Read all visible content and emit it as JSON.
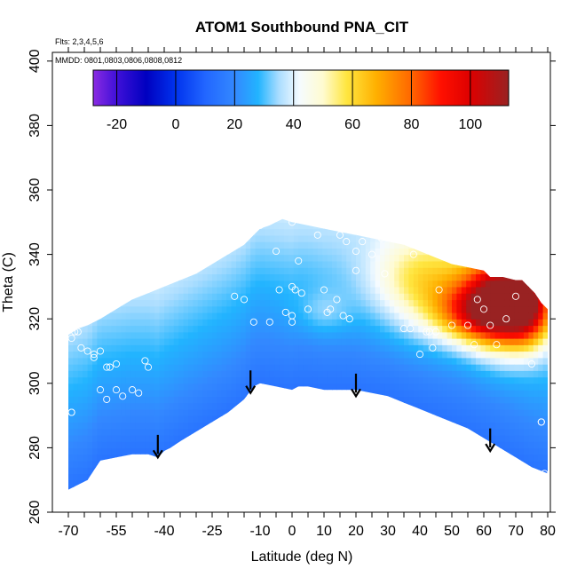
{
  "chart_data": {
    "type": "heatmap",
    "title": "ATOM1 Southbound PNA_CIT",
    "flights_note": "Flts: 2,3,4,5,6",
    "dates_note": "MMDD: 0801,0803,0806,0808,0812",
    "xlabel": "Latitude (deg N)",
    "ylabel": "Theta (C)",
    "xlim": [
      -70,
      80
    ],
    "ylim": [
      260,
      400
    ],
    "x_ticks": [
      -70,
      -55,
      -40,
      -25,
      -10,
      0,
      10,
      20,
      30,
      40,
      50,
      60,
      70,
      80
    ],
    "x_tick_labels": [
      "-70",
      "-55",
      "-40",
      "-25",
      "-10",
      "0",
      "10",
      "20",
      "30",
      "40",
      "50",
      "60",
      "70",
      "80"
    ],
    "x_minor_ticks": [
      -65,
      -60,
      -50,
      -45,
      -35,
      -30,
      -20,
      -15,
      -5,
      5,
      15,
      25,
      35,
      45,
      55,
      65,
      75
    ],
    "y_ticks": [
      260,
      280,
      300,
      320,
      340,
      360,
      380,
      400
    ],
    "y_tick_labels": [
      "260",
      "280",
      "300",
      "320",
      "340",
      "360",
      "380",
      "400"
    ],
    "colorbar": {
      "range": [
        -28,
        113
      ],
      "ticks": [
        -20,
        0,
        20,
        40,
        60,
        80,
        100
      ],
      "tick_labels": [
        "-20",
        "0",
        "20",
        "40",
        "60",
        "80",
        "100"
      ],
      "stops": [
        {
          "v": -28,
          "c": "#8a2be2"
        },
        {
          "v": -20,
          "c": "#3f10d8"
        },
        {
          "v": -10,
          "c": "#0000c0"
        },
        {
          "v": 0,
          "c": "#0033ee"
        },
        {
          "v": 10,
          "c": "#2266ff"
        },
        {
          "v": 20,
          "c": "#3388ff"
        },
        {
          "v": 28,
          "c": "#22b4ff"
        },
        {
          "v": 35,
          "c": "#aaddff"
        },
        {
          "v": 42,
          "c": "#f5fbff"
        },
        {
          "v": 50,
          "c": "#fffbd0"
        },
        {
          "v": 58,
          "c": "#ffe640"
        },
        {
          "v": 68,
          "c": "#ffb000"
        },
        {
          "v": 80,
          "c": "#ff6600"
        },
        {
          "v": 90,
          "c": "#ff1000"
        },
        {
          "v": 100,
          "c": "#dd0000"
        },
        {
          "v": 113,
          "c": "#992222"
        }
      ]
    },
    "top_boundary": [
      [
        -70,
        315
      ],
      [
        -67,
        317
      ],
      [
        -64,
        318
      ],
      [
        -60,
        320
      ],
      [
        -55,
        323
      ],
      [
        -50,
        326
      ],
      [
        -45,
        328
      ],
      [
        -40,
        330
      ],
      [
        -35,
        332
      ],
      [
        -30,
        334
      ],
      [
        -25,
        337
      ],
      [
        -20,
        340
      ],
      [
        -15,
        343
      ],
      [
        -12,
        346
      ],
      [
        -10,
        348
      ],
      [
        -7,
        349
      ],
      [
        -5,
        350
      ],
      [
        -3,
        351
      ],
      [
        0,
        350
      ],
      [
        5,
        349
      ],
      [
        10,
        348
      ],
      [
        15,
        347
      ],
      [
        20,
        346
      ],
      [
        25,
        345
      ],
      [
        30,
        344
      ],
      [
        35,
        343
      ],
      [
        40,
        341
      ],
      [
        45,
        339
      ],
      [
        50,
        337
      ],
      [
        55,
        336
      ],
      [
        60,
        335
      ],
      [
        62,
        333
      ],
      [
        66,
        333
      ],
      [
        70,
        332
      ],
      [
        72,
        332
      ],
      [
        74,
        330
      ],
      [
        76,
        328
      ],
      [
        78,
        325
      ],
      [
        79,
        324
      ],
      [
        80,
        323
      ]
    ],
    "bottom_boundary": [
      [
        80,
        272
      ],
      [
        75,
        274
      ],
      [
        70,
        277
      ],
      [
        65,
        280
      ],
      [
        60,
        283
      ],
      [
        55,
        286
      ],
      [
        50,
        288
      ],
      [
        45,
        290
      ],
      [
        40,
        292
      ],
      [
        35,
        294
      ],
      [
        30,
        296
      ],
      [
        25,
        297
      ],
      [
        20,
        298
      ],
      [
        15,
        298
      ],
      [
        10,
        298
      ],
      [
        5,
        299
      ],
      [
        2,
        299
      ],
      [
        0,
        298
      ],
      [
        -5,
        299
      ],
      [
        -10,
        300
      ],
      [
        -12,
        299
      ],
      [
        -15,
        295
      ],
      [
        -20,
        291
      ],
      [
        -25,
        288
      ],
      [
        -30,
        285
      ],
      [
        -35,
        282
      ],
      [
        -38,
        280
      ],
      [
        -40,
        279
      ],
      [
        -42,
        277
      ],
      [
        -45,
        278
      ],
      [
        -50,
        278
      ],
      [
        -55,
        277
      ],
      [
        -60,
        276
      ],
      [
        -62,
        273
      ],
      [
        -64,
        270
      ],
      [
        -68,
        268
      ],
      [
        -70,
        267
      ]
    ],
    "field_anomalies": [
      {
        "lat": 66,
        "theta": 326,
        "amp": 70,
        "sx": 8,
        "sy": 10
      },
      {
        "lat": 74,
        "theta": 324,
        "amp": 45,
        "sx": 5,
        "sy": 8
      },
      {
        "lat": 58,
        "theta": 322,
        "amp": 40,
        "sx": 9,
        "sy": 6
      },
      {
        "lat": 45,
        "theta": 328,
        "amp": 22,
        "sx": 13,
        "sy": 10
      },
      {
        "lat": 38,
        "theta": 335,
        "amp": 10,
        "sx": 10,
        "sy": 8
      },
      {
        "lat": 10,
        "theta": 322,
        "amp": 8,
        "sx": 6,
        "sy": 5
      }
    ],
    "observation_points": [
      [
        -69,
        314
      ],
      [
        -68,
        316
      ],
      [
        -67,
        316
      ],
      [
        -66,
        311
      ],
      [
        -64,
        310
      ],
      [
        -62,
        308
      ],
      [
        -58,
        305
      ],
      [
        -57,
        305
      ],
      [
        -55,
        306
      ],
      [
        -60,
        298
      ],
      [
        -58,
        295
      ],
      [
        -55,
        298
      ],
      [
        -53,
        296
      ],
      [
        -50,
        298
      ],
      [
        -48,
        297
      ],
      [
        -46,
        307
      ],
      [
        -45,
        305
      ],
      [
        -69,
        291
      ],
      [
        -69,
        291
      ],
      [
        -62,
        309
      ],
      [
        -60,
        310
      ],
      [
        -12,
        319
      ],
      [
        -10,
        349
      ],
      [
        -5,
        341
      ],
      [
        -4,
        329
      ],
      [
        -2,
        322
      ],
      [
        0,
        330
      ],
      [
        1,
        329
      ],
      [
        2,
        338
      ],
      [
        3,
        328
      ],
      [
        0,
        350
      ],
      [
        -3,
        353
      ],
      [
        0,
        321
      ],
      [
        0,
        319
      ],
      [
        -7,
        319
      ],
      [
        -15,
        326
      ],
      [
        -18,
        327
      ],
      [
        5,
        323
      ],
      [
        8,
        346
      ],
      [
        10,
        329
      ],
      [
        11,
        322
      ],
      [
        12,
        323
      ],
      [
        14,
        326
      ],
      [
        15,
        346
      ],
      [
        17,
        344
      ],
      [
        20,
        341
      ],
      [
        20,
        335
      ],
      [
        16,
        321
      ],
      [
        18,
        320
      ],
      [
        22,
        344
      ],
      [
        25,
        340
      ],
      [
        28,
        345
      ],
      [
        29,
        334
      ],
      [
        35,
        317
      ],
      [
        37,
        317
      ],
      [
        38,
        340
      ],
      [
        40,
        309
      ],
      [
        42,
        316
      ],
      [
        43,
        316
      ],
      [
        44,
        311
      ],
      [
        45,
        316
      ],
      [
        46,
        329
      ],
      [
        50,
        318
      ],
      [
        55,
        318
      ],
      [
        57,
        312
      ],
      [
        58,
        326
      ],
      [
        60,
        323
      ],
      [
        62,
        318
      ],
      [
        64,
        312
      ],
      [
        67,
        320
      ],
      [
        70,
        327
      ],
      [
        75,
        306
      ],
      [
        78,
        288
      ],
      [
        78,
        288
      ],
      [
        79,
        272
      ]
    ],
    "arrows": [
      {
        "lat": -42,
        "theta_top": 284,
        "theta_tip": 277
      },
      {
        "lat": -13,
        "theta_top": 304,
        "theta_tip": 297
      },
      {
        "lat": 20,
        "theta_top": 303,
        "theta_tip": 296
      },
      {
        "lat": 62,
        "theta_top": 286,
        "theta_tip": 279
      }
    ]
  }
}
